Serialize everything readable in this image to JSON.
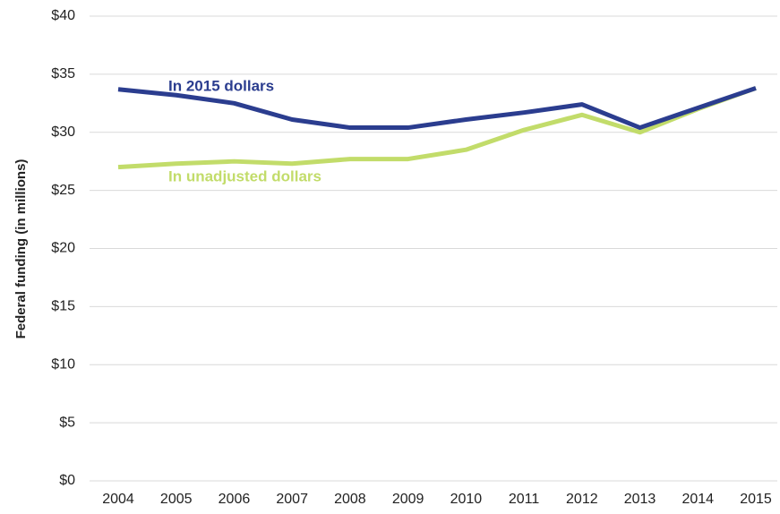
{
  "chart_data": {
    "type": "line",
    "y_label": "Federal funding (in millions)",
    "categories": [
      "2004",
      "2005",
      "2006",
      "2007",
      "2008",
      "2009",
      "2010",
      "2011",
      "2012",
      "2013",
      "2014",
      "2015"
    ],
    "series": [
      {
        "name": "In 2015 dollars",
        "color": "#2b3d8f",
        "values": [
          33.7,
          33.2,
          32.5,
          31.1,
          30.4,
          30.4,
          31.1,
          31.7,
          32.4,
          30.4,
          32.1,
          33.8
        ]
      },
      {
        "name": "In unadjusted dollars",
        "color": "#c2dc6a",
        "values": [
          27.0,
          27.3,
          27.5,
          27.3,
          27.7,
          27.7,
          28.5,
          30.2,
          31.5,
          30.0,
          32.0,
          33.8
        ]
      }
    ],
    "ylim": [
      0,
      40
    ],
    "yticks": [
      {
        "value": 0,
        "label": "$0"
      },
      {
        "value": 5,
        "label": "$5"
      },
      {
        "value": 10,
        "label": "$10"
      },
      {
        "value": 15,
        "label": "$15"
      },
      {
        "value": 20,
        "label": "$20"
      },
      {
        "value": 25,
        "label": "$25"
      },
      {
        "value": 30,
        "label": "$30"
      },
      {
        "value": 35,
        "label": "$35"
      },
      {
        "value": 40,
        "label": "$40"
      }
    ],
    "grid": true
  }
}
